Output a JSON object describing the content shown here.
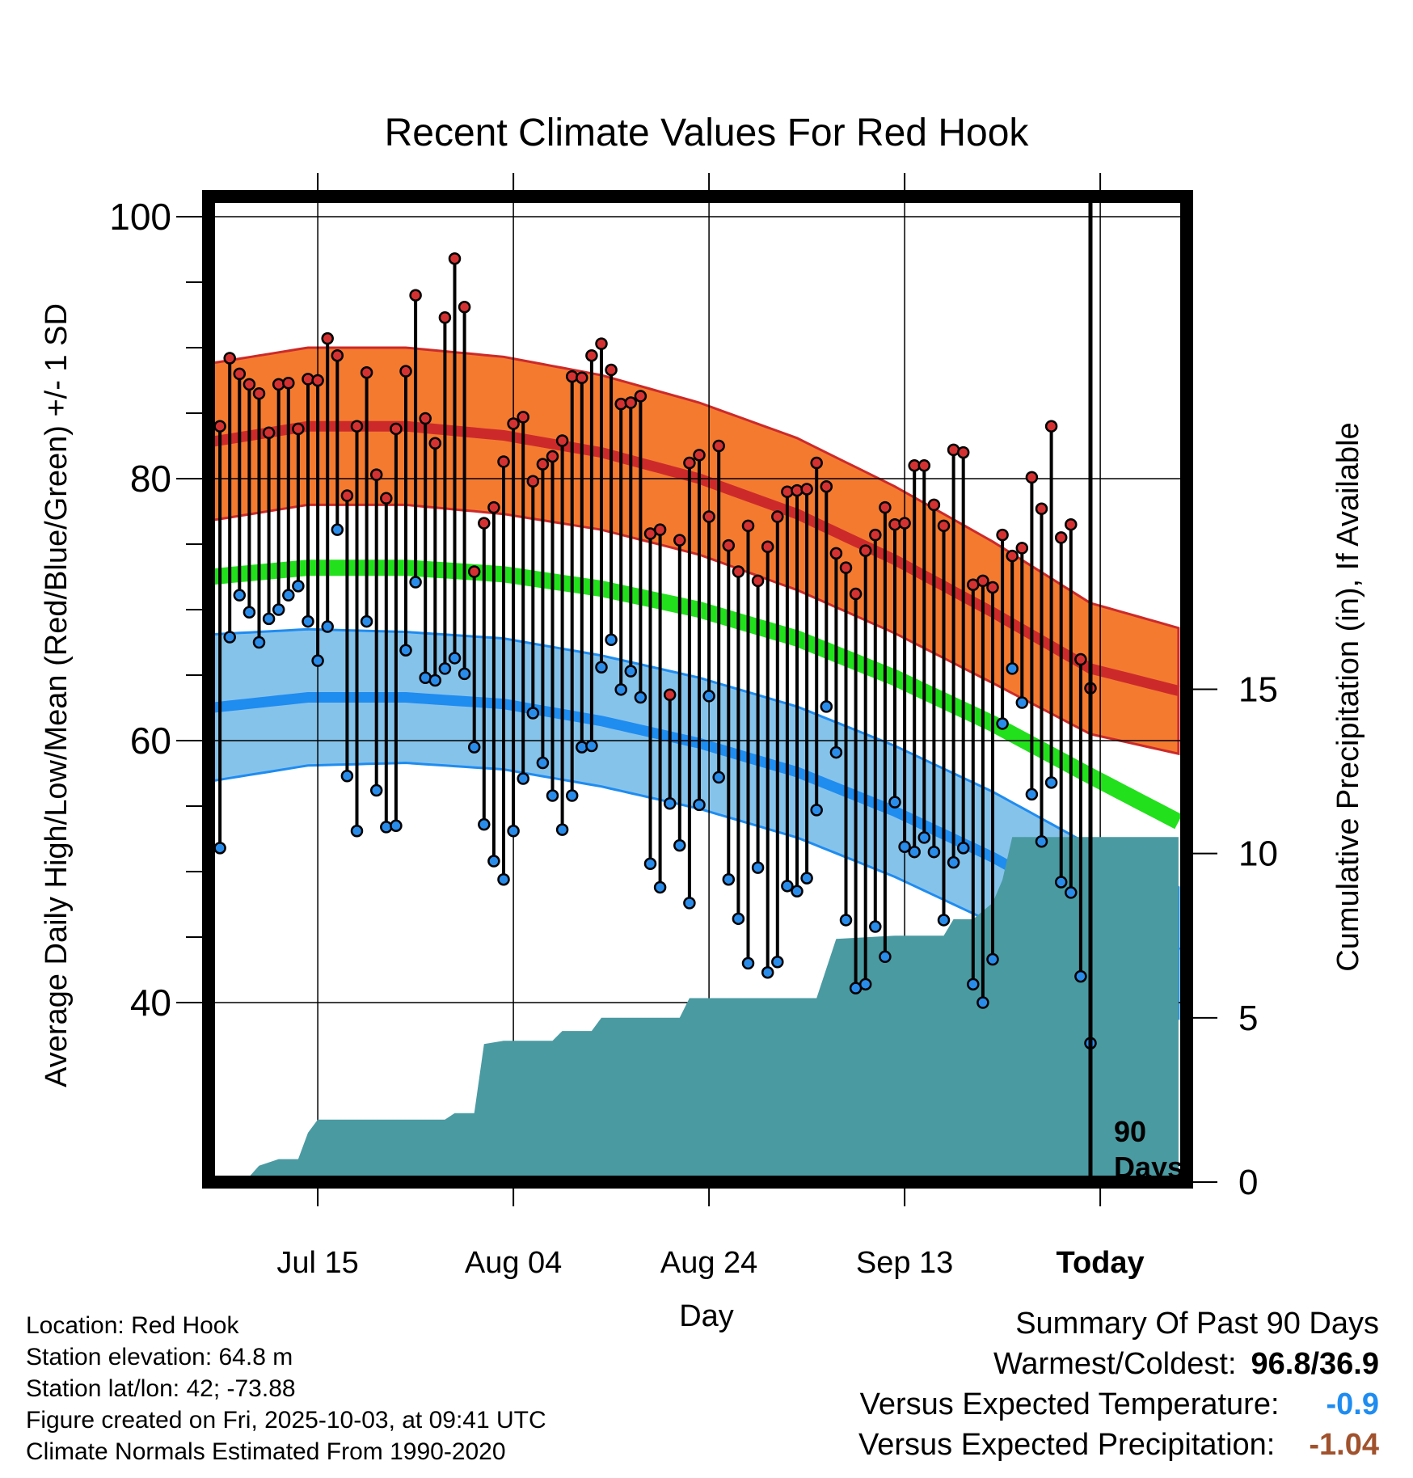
{
  "chart_data": {
    "type": "climate-range",
    "title": "Recent Climate Values For Red Hook",
    "xlabel": "Day",
    "ylabel_left": "Average Daily High/Low/Mean (Red/Blue/Green) +/- 1 SD",
    "ylabel_right": "Cumulative Precipitation (in), If Available",
    "x_range_days": [
      -90,
      9
    ],
    "ylim_left": [
      28,
      103
    ],
    "ylim_right": [
      0,
      30
    ],
    "y_ticks_left": [
      40,
      60,
      80,
      100
    ],
    "y_tick_labels_left": [
      "40",
      "60",
      "80",
      "100"
    ],
    "y_ticks_right": [
      0,
      5,
      10,
      15
    ],
    "y_tick_labels_right": [
      "0",
      "5",
      "10",
      "15"
    ],
    "x_ticks": [
      -79,
      -59,
      -39,
      -19,
      1
    ],
    "x_tick_labels": [
      "Jul 15",
      "Aug 04",
      "Aug 24",
      "Sep 13",
      "Today"
    ],
    "today_marker_label": [
      "90",
      "Days"
    ],
    "colors": {
      "high_band": "#f47a30",
      "high_line": "#cc2a2a",
      "mean_line": "#22e01c",
      "low_band": "#86c3ea",
      "low_line": "#1f8cf0",
      "precip": "#4a9aa2",
      "high_point": "#d43232",
      "low_point": "#2a8cea"
    },
    "normals": {
      "day": [
        -90,
        -80,
        -70,
        -60,
        -50,
        -40,
        -30,
        -20,
        -10,
        0,
        9
      ],
      "high_mean": [
        82.8,
        84.0,
        84.0,
        83.3,
        82.0,
        80.0,
        77.3,
        73.8,
        69.8,
        65.5,
        63.8
      ],
      "high_sd": [
        6.0,
        6.0,
        6.0,
        6.0,
        5.9,
        5.8,
        5.8,
        5.6,
        5.4,
        5.0,
        4.8
      ],
      "mean": [
        72.5,
        73.2,
        73.2,
        72.7,
        71.6,
        70.0,
        67.8,
        64.8,
        61.3,
        57.3,
        53.8
      ],
      "low_mean": [
        62.5,
        63.3,
        63.3,
        62.8,
        61.5,
        59.8,
        57.6,
        54.6,
        51.1,
        47.0,
        43.8
      ],
      "low_sd": [
        5.6,
        5.2,
        5.0,
        5.0,
        5.0,
        5.0,
        5.0,
        5.0,
        5.0,
        5.0,
        5.0
      ]
    },
    "daily_high": [
      84.0,
      89.2,
      88.0,
      87.2,
      86.5,
      83.5,
      87.2,
      87.3,
      83.8,
      87.6,
      87.5,
      90.7,
      89.4,
      78.7,
      84.0,
      88.1,
      80.3,
      78.5,
      83.8,
      88.2,
      94.0,
      84.6,
      82.7,
      92.3,
      96.8,
      93.1,
      72.9,
      76.6,
      77.8,
      81.3,
      84.2,
      84.7,
      79.8,
      81.1,
      81.7,
      82.9,
      87.8,
      87.7,
      89.4,
      90.3,
      88.3,
      85.7,
      85.8,
      86.3,
      75.8,
      76.1,
      63.5,
      75.3,
      81.2,
      81.8,
      77.1,
      82.5,
      74.9,
      72.9,
      76.4,
      72.2,
      74.8,
      77.1,
      79.0,
      79.1,
      79.2,
      81.2,
      79.4,
      74.3,
      73.2,
      71.2,
      74.5,
      75.7,
      77.8,
      76.5,
      76.6,
      81.0,
      81.0,
      78.0,
      76.4,
      82.2,
      82.0,
      71.9,
      72.2,
      71.7,
      75.7,
      74.1,
      74.7,
      80.1,
      77.7,
      84.0,
      75.5,
      76.5,
      66.2,
      64.0
    ],
    "daily_low": [
      51.8,
      67.9,
      71.1,
      69.8,
      67.5,
      69.3,
      70.0,
      71.1,
      71.8,
      69.1,
      66.1,
      68.7,
      76.1,
      57.3,
      53.1,
      69.1,
      56.2,
      53.4,
      53.5,
      66.9,
      72.1,
      64.8,
      64.6,
      65.5,
      66.3,
      65.1,
      59.5,
      53.6,
      50.8,
      49.4,
      53.1,
      57.1,
      62.1,
      58.3,
      55.8,
      53.2,
      55.8,
      59.5,
      59.6,
      65.6,
      67.7,
      63.9,
      65.3,
      63.3,
      50.6,
      48.8,
      55.2,
      52.0,
      47.6,
      55.1,
      63.4,
      57.2,
      49.4,
      46.4,
      43.0,
      50.3,
      42.3,
      43.1,
      48.9,
      48.5,
      49.5,
      54.7,
      62.6,
      59.1,
      46.3,
      41.1,
      41.4,
      45.8,
      43.5,
      55.3,
      51.9,
      51.5,
      52.6,
      51.5,
      46.3,
      50.7,
      51.8,
      41.4,
      40.0,
      43.3,
      61.3,
      65.5,
      62.9,
      55.9,
      52.3,
      56.8,
      49.2,
      48.4,
      42.0,
      36.9
    ],
    "precip_cumulative": {
      "day": [
        -86.5,
        -85,
        -83,
        -81,
        -80,
        -79,
        -78,
        -75,
        -70,
        -66,
        -65,
        -63,
        -62,
        -60,
        -59,
        -55,
        -54,
        -51,
        -50,
        -48,
        -42,
        -41,
        -38,
        -35,
        -30,
        -28,
        -27,
        -26,
        -20,
        -18,
        -17,
        -15,
        -14,
        -12,
        -10,
        -9,
        -8,
        0,
        9
      ],
      "value": [
        0,
        0.5,
        0.7,
        0.7,
        1.5,
        1.9,
        1.9,
        1.9,
        1.9,
        1.9,
        2.1,
        2.1,
        4.2,
        4.3,
        4.3,
        4.3,
        4.6,
        4.6,
        5.0,
        5.0,
        5.0,
        5.6,
        5.6,
        5.6,
        5.6,
        5.6,
        6.5,
        7.4,
        7.5,
        7.5,
        7.5,
        7.5,
        8.0,
        8.0,
        8.5,
        9.2,
        10.5,
        10.5,
        10.5
      ]
    }
  },
  "info": {
    "location": "Location: Red Hook",
    "elevation": "Station elevation: 64.8 m",
    "latlon": "Station lat/lon: 42; -73.88",
    "created": "Figure created on Fri, 2025-10-03, at 09:41 UTC",
    "normals": "Climate Normals Estimated From 1990-2020"
  },
  "summary": {
    "title": "Summary Of Past 90 Days",
    "warm_cold_label": "Warmest/Coldest:",
    "warm_cold_value": "96.8/36.9",
    "temp_label": "Versus Expected Temperature:",
    "temp_value": "-0.9",
    "temp_color": "#1f8cf0",
    "precip_label": "Versus Expected Precipitation:",
    "precip_value": "-1.04",
    "precip_color": "#a0522d"
  }
}
